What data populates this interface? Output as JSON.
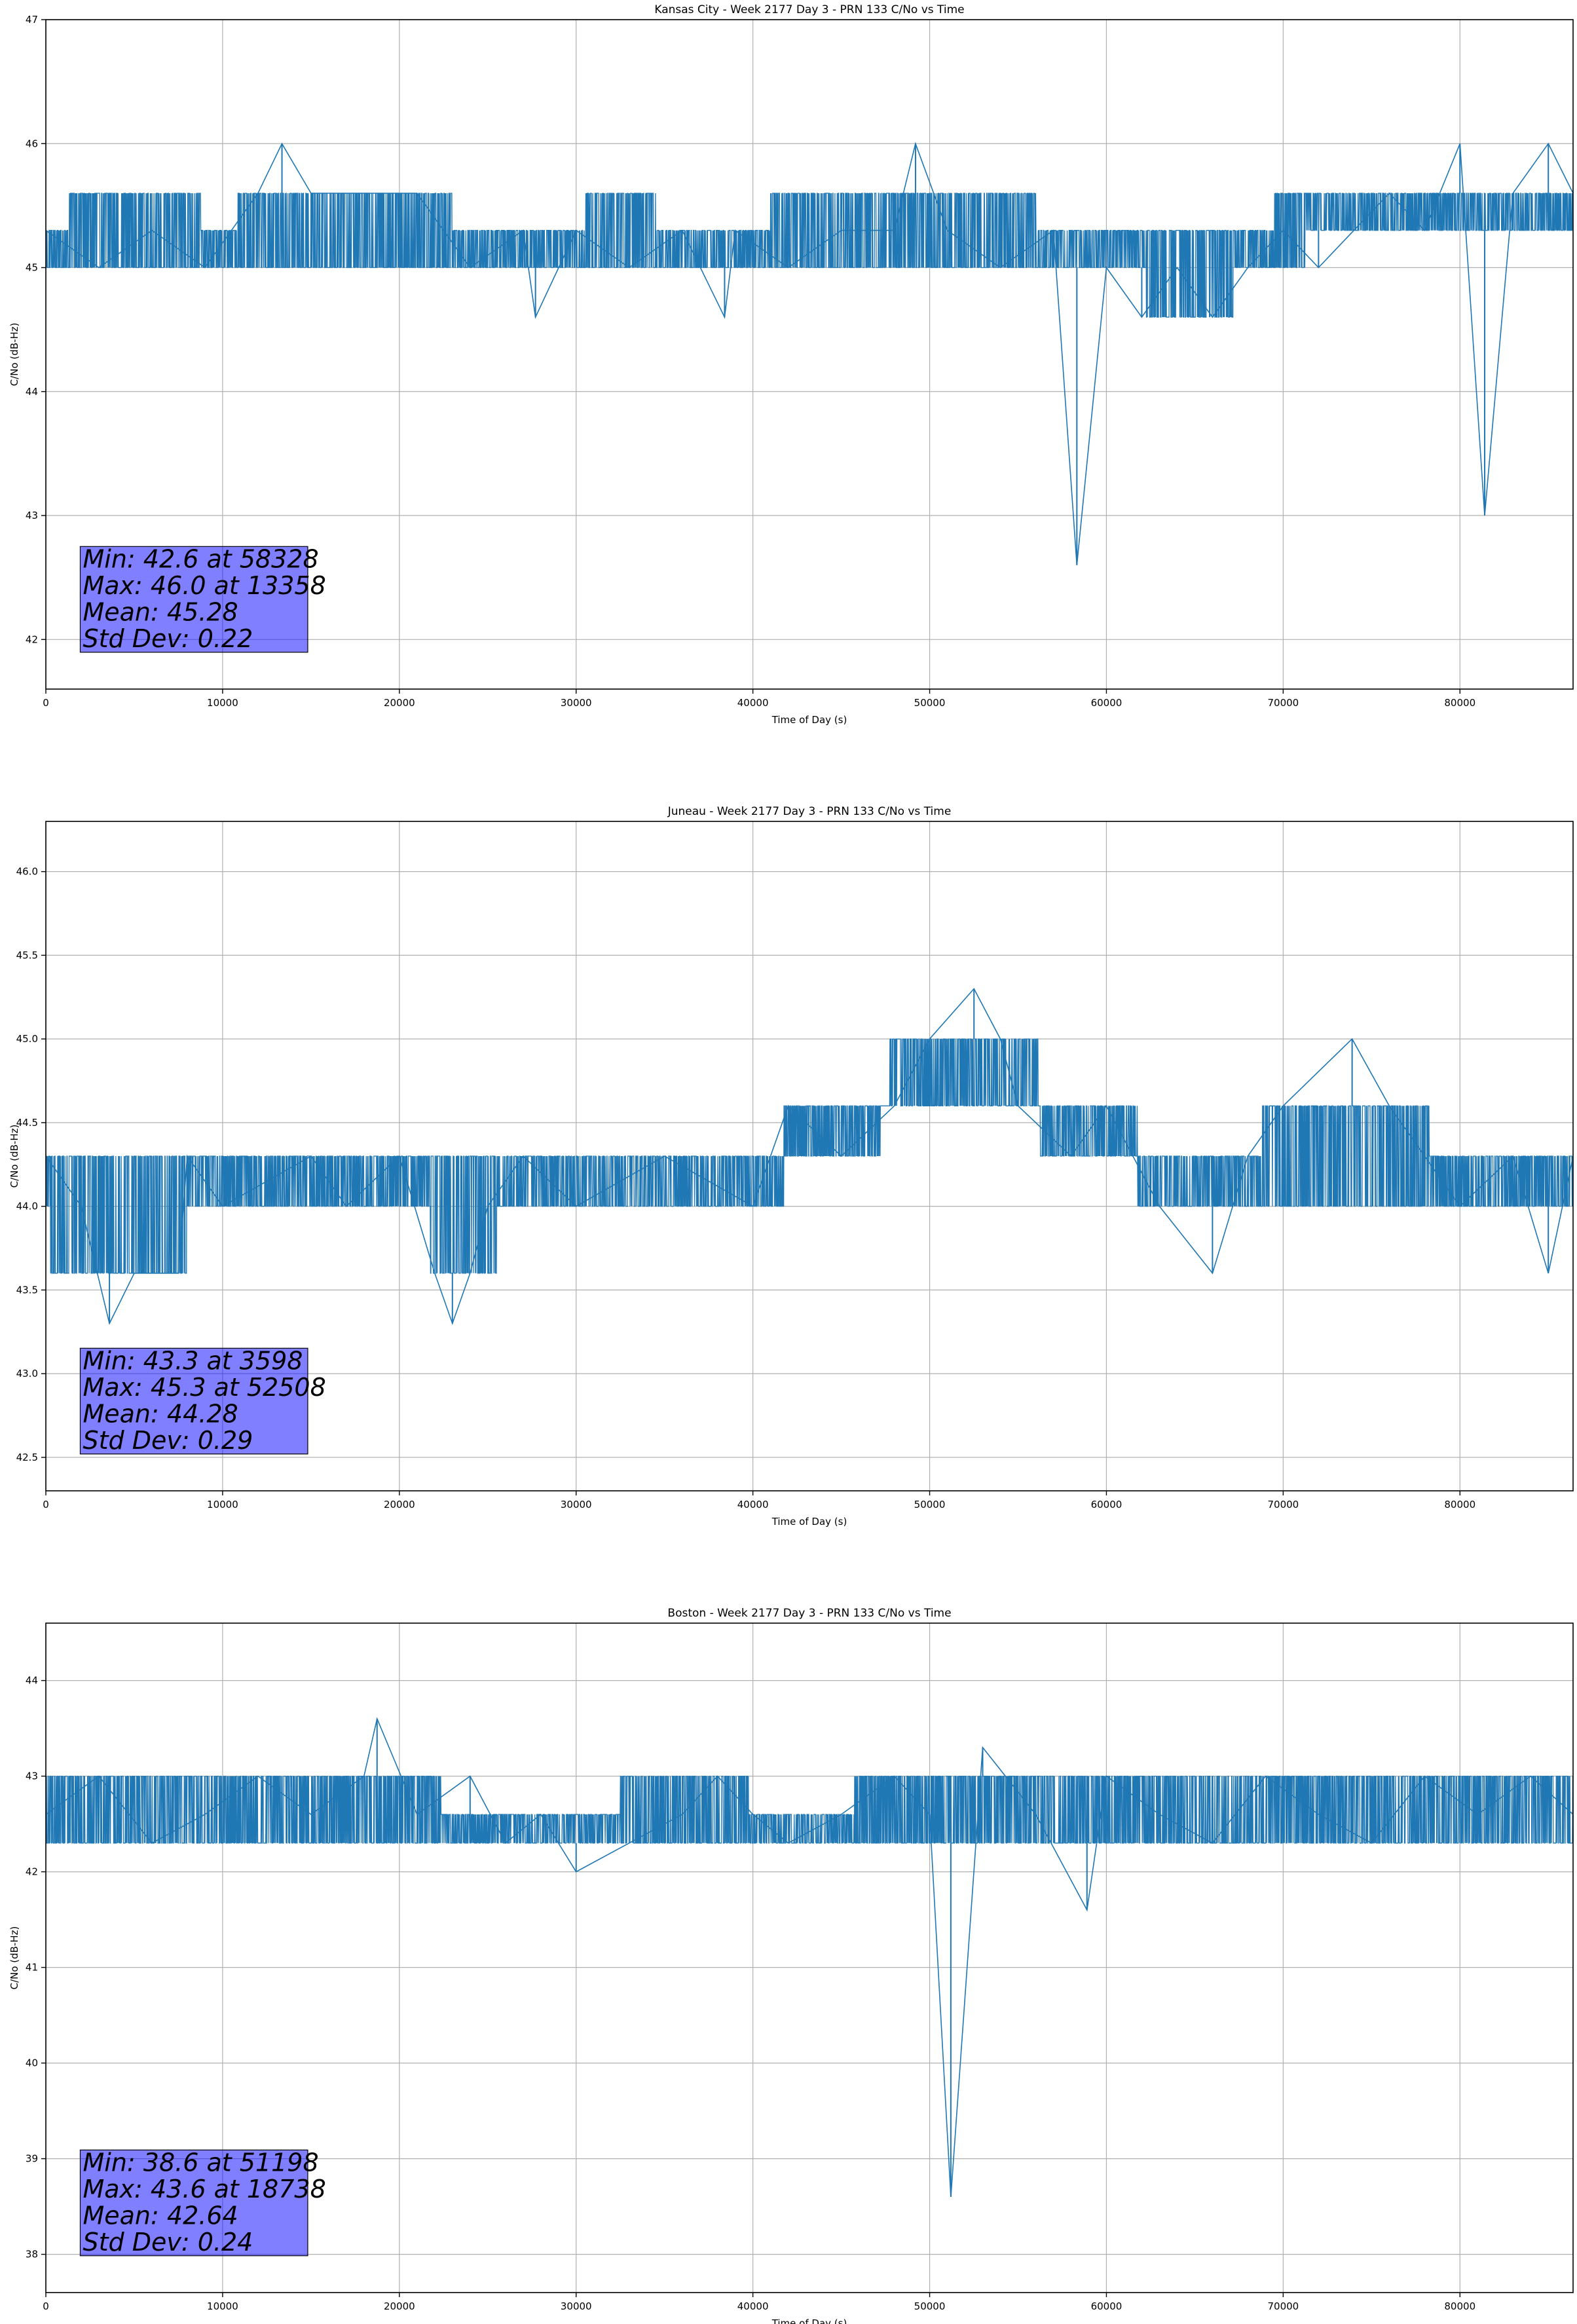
{
  "chart_data": [
    {
      "type": "line",
      "title": "Kansas City - Week 2177 Day 3 - PRN 133 C/No vs Time",
      "xlabel": "Time of Day (s)",
      "ylabel": "C/No (dB-Hz)",
      "xlim": [
        0,
        86400
      ],
      "ylim": [
        41.6,
        47.0
      ],
      "grid": true,
      "line_color": "#1f77b4",
      "x_ticks": [
        0,
        10000,
        20000,
        30000,
        40000,
        50000,
        60000,
        70000,
        80000
      ],
      "y_ticks": [
        42,
        43,
        44,
        45,
        46,
        47
      ],
      "y_tick_labels": [
        "42",
        "43",
        "44",
        "45",
        "46",
        "47"
      ],
      "stats_box": {
        "color": "#0000ff",
        "lines": [
          "Min: 42.6 at 58328",
          "Max: 46.0 at 13358",
          "Mean: 45.28",
          "Std Dev: 0.22"
        ]
      },
      "series": [
        {
          "x": [
            0,
            3000,
            6000,
            9000,
            10500,
            12000,
            13358,
            15000,
            18000,
            21000,
            22500,
            24000,
            27000,
            27700,
            30000,
            33000,
            36000,
            38400,
            39000,
            42000,
            45000,
            48000,
            49200,
            51000,
            54000,
            57000,
            58328,
            60000,
            62000,
            64000,
            66000,
            68000,
            70000,
            72000,
            74000,
            76000,
            78000,
            80000,
            81400,
            83000,
            85000,
            86400
          ],
          "y": [
            45.3,
            45.0,
            45.3,
            45.0,
            45.3,
            45.6,
            46.0,
            45.6,
            45.6,
            45.6,
            45.3,
            45.0,
            45.3,
            44.6,
            45.3,
            45.0,
            45.3,
            44.6,
            45.3,
            45.0,
            45.3,
            45.3,
            46.0,
            45.3,
            45.0,
            45.3,
            42.6,
            45.0,
            44.6,
            45.0,
            44.6,
            45.0,
            45.3,
            45.0,
            45.3,
            45.6,
            45.3,
            46.0,
            43.0,
            45.6,
            46.0,
            45.6
          ],
          "envelope_low": [
            [
              0,
              45.0
            ],
            [
              21700,
              45.0
            ],
            [
              22500,
              45.0
            ],
            [
              30000,
              45.0
            ],
            [
              36000,
              45.0
            ],
            [
              55000,
              45.0
            ],
            [
              61500,
              45.0
            ],
            [
              63000,
              44.6
            ],
            [
              66500,
              44.6
            ],
            [
              68000,
              45.0
            ],
            [
              74500,
              45.3
            ],
            [
              86400,
              45.3
            ]
          ],
          "envelope_high": [
            [
              0,
              45.3
            ],
            [
              2500,
              45.6
            ],
            [
              7000,
              45.6
            ],
            [
              10500,
              45.3
            ],
            [
              11200,
              45.6
            ],
            [
              22500,
              45.6
            ],
            [
              23500,
              45.3
            ],
            [
              30000,
              45.3
            ],
            [
              31000,
              45.6
            ],
            [
              38000,
              45.3
            ],
            [
              44000,
              45.6
            ],
            [
              55000,
              45.6
            ],
            [
              57000,
              45.3
            ],
            [
              69000,
              45.3
            ],
            [
              70000,
              45.6
            ],
            [
              86400,
              45.6
            ]
          ]
        }
      ]
    },
    {
      "type": "line",
      "title": "Juneau - Week 2177 Day 3 - PRN 133 C/No vs Time",
      "xlabel": "Time of Day (s)",
      "ylabel": "C/No (dB-Hz)",
      "xlim": [
        0,
        86400
      ],
      "ylim": [
        42.3,
        46.3
      ],
      "grid": true,
      "line_color": "#1f77b4",
      "x_ticks": [
        0,
        10000,
        20000,
        30000,
        40000,
        50000,
        60000,
        70000,
        80000
      ],
      "y_ticks": [
        42.5,
        43.0,
        43.5,
        44.0,
        44.5,
        45.0,
        45.5,
        46.0
      ],
      "y_tick_labels": [
        "42.5",
        "43.0",
        "43.5",
        "44.0",
        "44.5",
        "45.0",
        "45.5",
        "46.0"
      ],
      "stats_box": {
        "color": "#0000ff",
        "lines": [
          "Min: 43.3 at 3598",
          "Max: 45.3 at 52508",
          "Mean: 44.28",
          "Std Dev: 0.29"
        ]
      },
      "series": [
        {
          "x": [
            0,
            2000,
            3598,
            5000,
            7500,
            8000,
            10000,
            15000,
            17000,
            20000,
            22000,
            23000,
            24000,
            25000,
            27000,
            30000,
            35000,
            40000,
            42000,
            45000,
            48000,
            50000,
            52508,
            54000,
            55000,
            58000,
            60000,
            61500,
            63000,
            66000,
            68000,
            70000,
            73900,
            76000,
            78000,
            80000,
            83000,
            85000,
            86400
          ],
          "y": [
            44.3,
            44.0,
            43.3,
            43.6,
            43.6,
            44.3,
            44.0,
            44.3,
            44.0,
            44.3,
            43.6,
            43.3,
            43.6,
            44.0,
            44.3,
            44.0,
            44.3,
            44.0,
            44.6,
            44.3,
            44.6,
            45.0,
            45.3,
            45.0,
            44.6,
            44.3,
            44.6,
            44.3,
            44.0,
            43.6,
            44.3,
            44.6,
            45.0,
            44.6,
            44.3,
            44.0,
            44.3,
            43.6,
            44.3
          ],
          "envelope_low": [
            [
              0,
              44.0
            ],
            [
              500,
              43.6
            ],
            [
              7800,
              43.6
            ],
            [
              8200,
              44.0
            ],
            [
              21500,
              44.0
            ],
            [
              22000,
              43.6
            ],
            [
              25000,
              43.6
            ],
            [
              26000,
              44.0
            ],
            [
              41500,
              44.0
            ],
            [
              42000,
              44.3
            ],
            [
              47000,
              44.3
            ],
            [
              47500,
              44.6
            ],
            [
              56000,
              44.6
            ],
            [
              56500,
              44.3
            ],
            [
              61500,
              44.3
            ],
            [
              62000,
              44.0
            ],
            [
              86400,
              44.0
            ]
          ],
          "envelope_high": [
            [
              0,
              44.3
            ],
            [
              41500,
              44.3
            ],
            [
              42000,
              44.6
            ],
            [
              47500,
              44.6
            ],
            [
              48000,
              45.0
            ],
            [
              56000,
              45.0
            ],
            [
              56500,
              44.6
            ],
            [
              61500,
              44.6
            ],
            [
              62000,
              44.3
            ],
            [
              68500,
              44.3
            ],
            [
              69000,
              44.6
            ],
            [
              78000,
              44.6
            ],
            [
              78500,
              44.3
            ],
            [
              86400,
              44.3
            ]
          ]
        }
      ]
    },
    {
      "type": "line",
      "title": "Boston - Week 2177 Day 3 - PRN 133 C/No vs Time",
      "xlabel": "Time of Day (s)",
      "ylabel": "C/No (dB-Hz)",
      "xlim": [
        0,
        86400
      ],
      "ylim": [
        37.6,
        44.6
      ],
      "grid": true,
      "line_color": "#1f77b4",
      "x_ticks": [
        0,
        10000,
        20000,
        30000,
        40000,
        50000,
        60000,
        70000,
        80000
      ],
      "y_ticks": [
        38,
        39,
        40,
        41,
        42,
        43,
        44
      ],
      "y_tick_labels": [
        "38",
        "39",
        "40",
        "41",
        "42",
        "43",
        "44"
      ],
      "stats_box": {
        "color": "#0000ff",
        "lines": [
          "Min: 38.6 at 51198",
          "Max: 43.6 at 18738",
          "Mean: 42.64",
          "Std Dev: 0.24"
        ]
      },
      "series": [
        {
          "x": [
            0,
            3000,
            6000,
            9000,
            12000,
            15000,
            18000,
            18738,
            21000,
            24000,
            26000,
            28000,
            30000,
            33000,
            36000,
            38000,
            40000,
            42000,
            45000,
            48000,
            50000,
            51198,
            53000,
            56000,
            58900,
            60000,
            63000,
            66000,
            69000,
            72000,
            75000,
            78000,
            81000,
            84000,
            86400
          ],
          "y": [
            42.6,
            43.0,
            42.3,
            42.6,
            43.0,
            42.6,
            43.0,
            43.6,
            42.6,
            43.0,
            42.3,
            42.6,
            42.0,
            42.3,
            42.6,
            43.0,
            42.6,
            42.3,
            42.6,
            43.0,
            42.6,
            38.6,
            43.3,
            42.6,
            41.6,
            43.0,
            42.6,
            42.3,
            43.0,
            42.6,
            42.3,
            43.0,
            42.6,
            43.0,
            42.6
          ],
          "envelope_low": [
            [
              0,
              42.3
            ],
            [
              22000,
              42.3
            ],
            [
              22500,
              42.3
            ],
            [
              86400,
              42.3
            ]
          ],
          "envelope_high": [
            [
              0,
              43.0
            ],
            [
              22000,
              43.0
            ],
            [
              22700,
              42.6
            ],
            [
              32000,
              42.6
            ],
            [
              33000,
              43.0
            ],
            [
              39500,
              43.0
            ],
            [
              40000,
              42.6
            ],
            [
              45500,
              42.6
            ],
            [
              46000,
              43.0
            ],
            [
              86400,
              43.0
            ]
          ]
        }
      ]
    }
  ]
}
